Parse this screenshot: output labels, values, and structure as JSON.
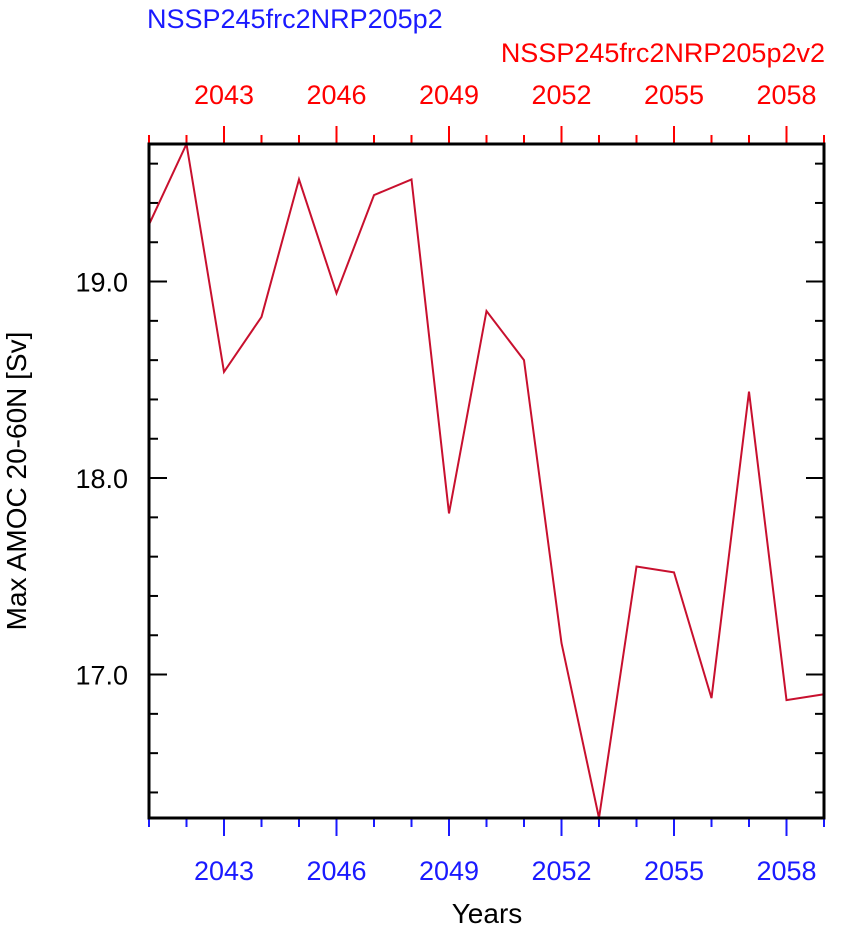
{
  "colors": {
    "series": "#c8102e",
    "bottom_axis": "#1a1aff",
    "top_axis": "#ff0000",
    "frame": "#000000"
  },
  "chart_data": {
    "type": "line",
    "title_left": "NSSP245frc2NRP205p2",
    "title_right": "NSSP245frc2NRP205p2v2",
    "xlabel": "Years",
    "ylabel": "Max AMOC 20-60N [Sv]",
    "xlim": [
      2041,
      2059
    ],
    "ylim": [
      16.27,
      19.7
    ],
    "x_ticks": [
      2043,
      2046,
      2049,
      2052,
      2055,
      2058
    ],
    "x_minor_step": 1,
    "y_ticks": [
      17.0,
      18.0,
      19.0
    ],
    "y_tick_labels": [
      "17.0",
      "18.0",
      "19.0"
    ],
    "y_minor_step": 0.2,
    "grid": false,
    "series": [
      {
        "x": [
          2041,
          2042,
          2043,
          2044,
          2045,
          2046,
          2047,
          2048,
          2049,
          2050,
          2051,
          2052,
          2053,
          2054,
          2055,
          2056,
          2057,
          2058,
          2059
        ],
        "values": [
          19.29,
          19.7,
          18.54,
          18.82,
          19.52,
          18.94,
          19.44,
          19.52,
          17.82,
          18.85,
          18.6,
          17.16,
          16.27,
          17.55,
          17.52,
          16.88,
          18.44,
          16.87,
          16.9
        ]
      }
    ]
  }
}
